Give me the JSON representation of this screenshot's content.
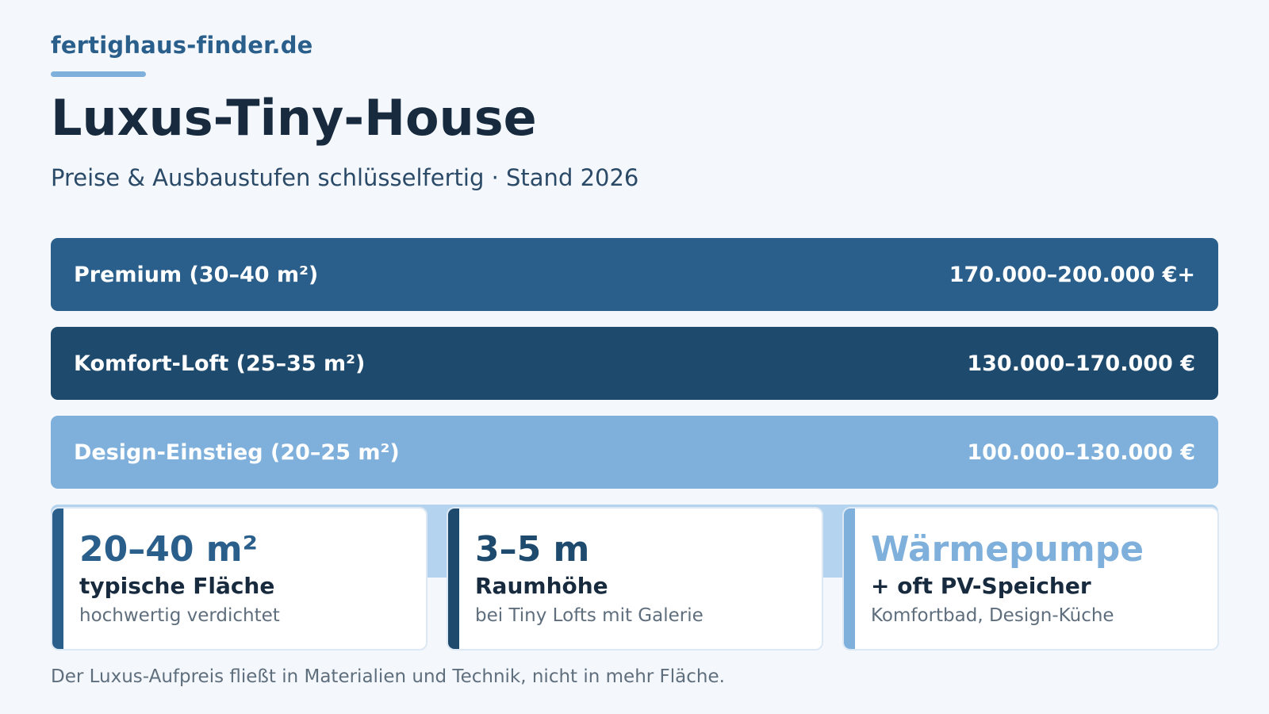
{
  "brand": {
    "name": "fertighaus-finder.de"
  },
  "header": {
    "title": "Luxus-Tiny-House",
    "subtitle": "Preise & Ausbaustufen schlüsselfertig · Stand 2026"
  },
  "tiers": [
    {
      "label": "Premium (30–40 m²)",
      "price": "170.000–200.000 €+",
      "color": "#2a5f8c"
    },
    {
      "label": "Komfort-Loft (25–35 m²)",
      "price": "130.000–170.000 €",
      "color": "#1e4a6e"
    },
    {
      "label": "Design-Einstieg (20–25 m²)",
      "price": "100.000–130.000 €",
      "color": "#7fb0db"
    }
  ],
  "cards": [
    {
      "value": "20–40 m²",
      "label": "typische Fläche",
      "note": "hochwertig verdichtet",
      "accent": "#2a5f8c"
    },
    {
      "value": "3–5 m",
      "label": "Raumhöhe",
      "note": "bei Tiny Lofts mit Galerie",
      "accent": "#1e4a6e"
    },
    {
      "value": "Wärmepumpe",
      "label": "+ oft PV-Speicher",
      "note": "Komfortbad, Design-Küche",
      "accent": "#7fb0db"
    }
  ],
  "footnote": "Der Luxus-Aufpreis fließt in Materialien und Technik, nicht in mehr Fläche."
}
